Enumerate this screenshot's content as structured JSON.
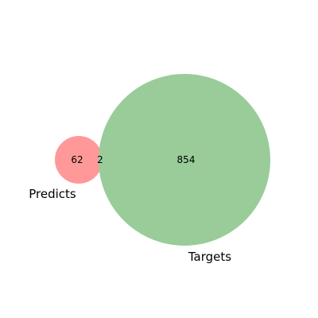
{
  "venn": {
    "sets": [
      {
        "name": "Predicts",
        "color": "#ff9999"
      },
      {
        "name": "Targets",
        "color": "#99cc99"
      }
    ],
    "regions": {
      "predicts_only": "62",
      "intersection": "2",
      "targets_only": "854"
    }
  }
}
